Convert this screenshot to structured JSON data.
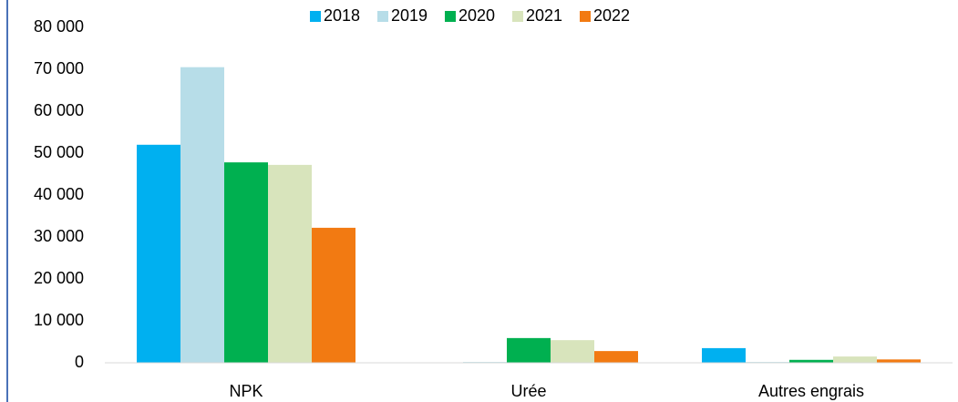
{
  "chart_data": {
    "type": "bar",
    "categories": [
      "NPK",
      "Urée",
      "Autres engrais"
    ],
    "series": [
      {
        "name": "2018",
        "color": "#00b0f0",
        "values": [
          52000,
          0,
          3500
        ]
      },
      {
        "name": "2019",
        "color": "#b7dde8",
        "values": [
          70500,
          200,
          200
        ]
      },
      {
        "name": "2020",
        "color": "#00b050",
        "values": [
          47800,
          5900,
          700
        ]
      },
      {
        "name": "2021",
        "color": "#d8e4bc",
        "values": [
          47200,
          5400,
          1500
        ]
      },
      {
        "name": "2022",
        "color": "#f27a12",
        "values": [
          32200,
          2800,
          800
        ]
      }
    ],
    "ylim": [
      0,
      80000
    ],
    "yticks": [
      0,
      {
        "value": 10000,
        "label": "10 000"
      },
      {
        "value": 20000,
        "label": "20 000"
      },
      {
        "value": 30000,
        "label": "30 000"
      },
      {
        "value": 40000,
        "label": "40 000"
      },
      {
        "value": 50000,
        "label": "50 000"
      },
      {
        "value": 60000,
        "label": "60 000"
      },
      {
        "value": 70000,
        "label": "70 000"
      },
      {
        "value": 80000,
        "label": "80 000"
      }
    ],
    "grid": false,
    "legend": "top"
  }
}
